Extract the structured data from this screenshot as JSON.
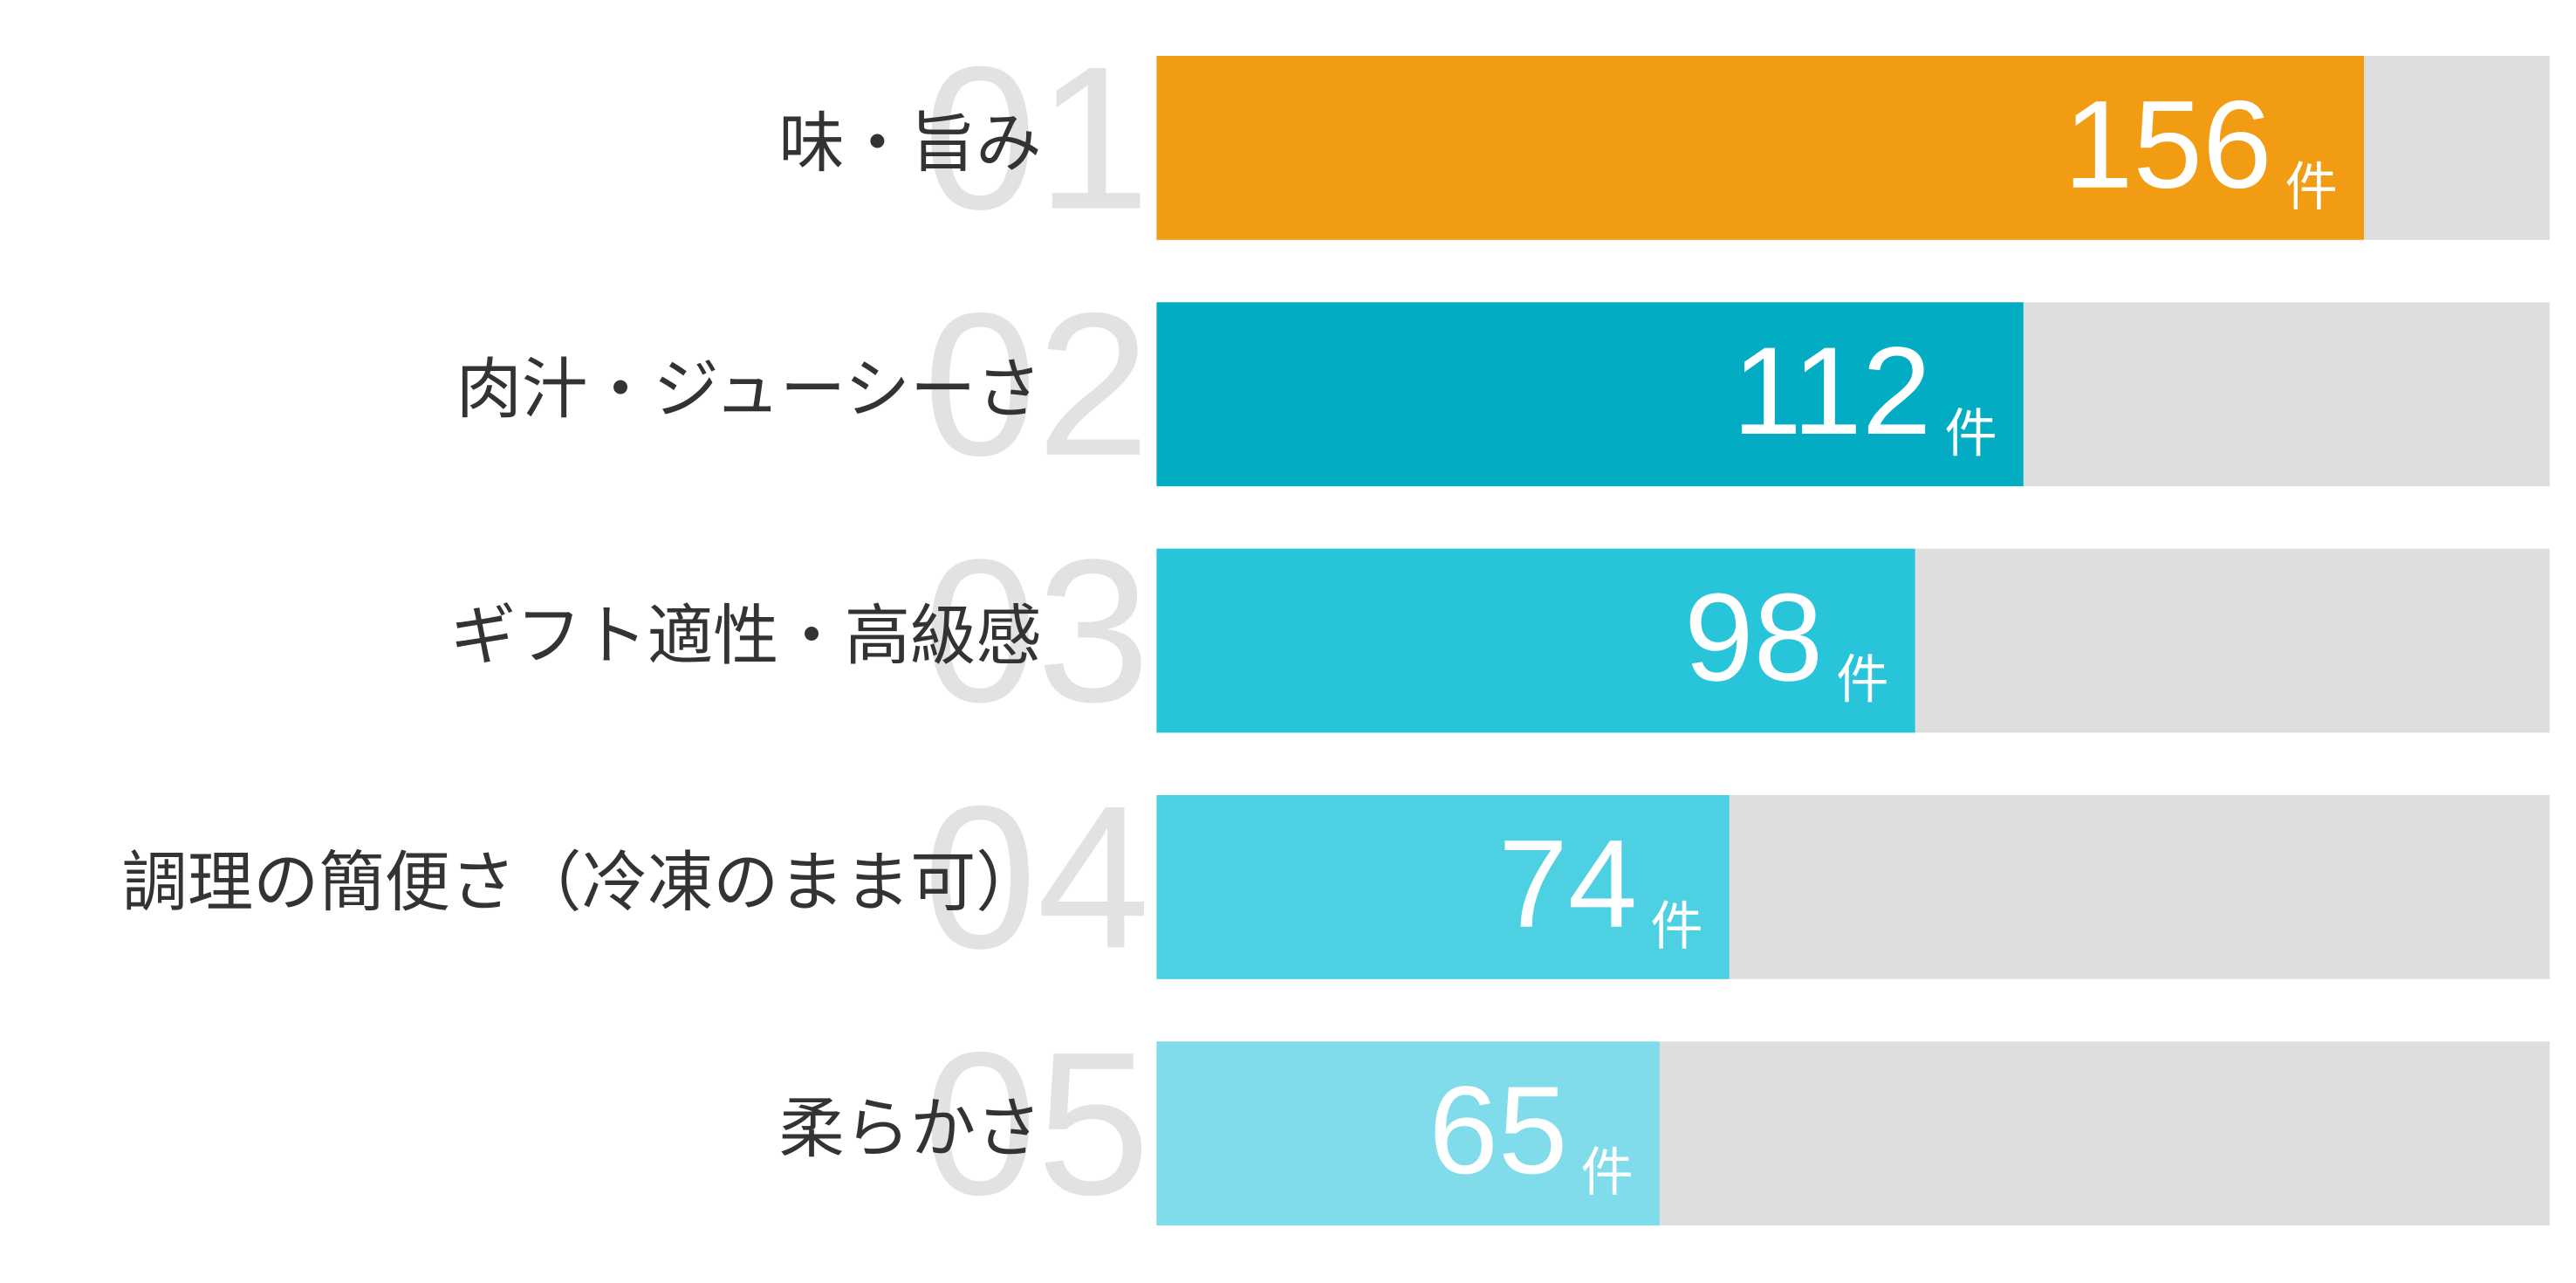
{
  "chart_data": {
    "type": "bar",
    "orientation": "horizontal",
    "ranks": [
      "01",
      "02",
      "03",
      "04",
      "05"
    ],
    "categories": [
      "味・旨み",
      "肉汁・ジューシーさ",
      "ギフト適性・高級感",
      "調理の簡便さ（冷凍のまま可）",
      "柔らかさ"
    ],
    "values": [
      156,
      112,
      98,
      74,
      65
    ],
    "unit": "件",
    "colors": [
      "#f29c14",
      "#02acc3",
      "#28c4d9",
      "#4ed0e3",
      "#80dcea"
    ],
    "track_color": "#dedede",
    "xlim": [
      0,
      180
    ]
  }
}
